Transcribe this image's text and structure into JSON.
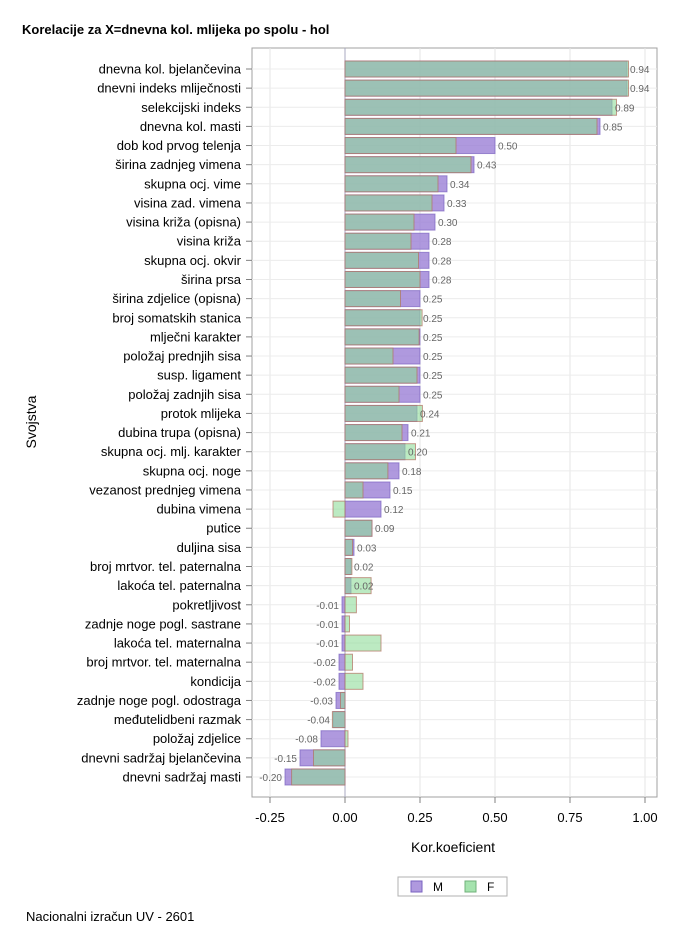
{
  "chart_data": {
    "type": "bar",
    "orientation": "horizontal",
    "title": "Korelacije za X=dnevna kol. mlijeka po spolu - hol",
    "xlabel": "Kor.koeficient",
    "ylabel": "Svojstva",
    "xlim": [
      -0.3,
      1.02
    ],
    "xticks": [
      "-0.25",
      "0.00",
      "0.25",
      "0.50",
      "0.75",
      "1.00"
    ],
    "xtick_values": [
      -0.25,
      0,
      0.25,
      0.5,
      0.75,
      1.0
    ],
    "grid": true,
    "legend_position": "bottom",
    "footnote": "Nacionalni izračun UV - 2601",
    "categories": [
      "dnevna kol. bjelančevina",
      "dnevni indeks mliječnosti",
      "selekcijski indeks",
      "dnevna kol. masti",
      "dob kod prvog telenja",
      "širina zadnjeg vimena",
      "skupna ocj. vime",
      "visina zad. vimena",
      "visina križa (opisna)",
      "visina križa",
      "skupna ocj. okvir",
      "širina prsa",
      "širina zdjelice (opisna)",
      "broj somatskih stanica",
      "mlječni karakter",
      "položaj prednjih sisa",
      "susp. ligament",
      "položaj zadnjih sisa",
      "protok mlijeka",
      "dubina trupa (opisna)",
      "skupna ocj. mlj. karakter",
      "skupna ocj. noge",
      "vezanost prednjeg vimena",
      "dubina vimena",
      "putice",
      "duljina sisa",
      "broj mrtvor. tel. paternalna",
      "lakoća tel. paternalna",
      "pokretljivost",
      "zadnje noge pogl. sastrane",
      "lakoća tel. maternalna",
      "broj mrtvor. tel. maternalna",
      "kondicija",
      "zadnje noge pogl. odostraga",
      "međutelidbeni razmak",
      "položaj zdjelice",
      "dnevni sadržaj bjelančevina",
      "dnevni sadržaj masti"
    ],
    "series": [
      {
        "name": "M",
        "color": "#9b7fd6",
        "values": [
          0.94,
          0.94,
          0.89,
          0.85,
          0.5,
          0.43,
          0.34,
          0.33,
          0.3,
          0.28,
          0.28,
          0.28,
          0.25,
          0.25,
          0.25,
          0.25,
          0.25,
          0.25,
          0.24,
          0.21,
          0.2,
          0.18,
          0.15,
          0.12,
          0.09,
          0.03,
          0.02,
          0.02,
          -0.01,
          -0.01,
          -0.01,
          -0.02,
          -0.02,
          -0.03,
          -0.04,
          -0.08,
          -0.15,
          -0.2
        ]
      },
      {
        "name": "F",
        "color": "#8fdc9a",
        "values": [
          0.945,
          0.945,
          0.905,
          0.84,
          0.37,
          0.42,
          0.31,
          0.29,
          0.23,
          0.22,
          0.245,
          0.25,
          0.185,
          0.257,
          0.247,
          0.16,
          0.24,
          0.18,
          0.258,
          0.19,
          0.235,
          0.143,
          0.06,
          -0.04,
          0.09,
          0.025,
          0.023,
          0.087,
          0.038,
          0.015,
          0.12,
          0.025,
          0.06,
          -0.015,
          -0.042,
          0.01,
          -0.105,
          -0.178
        ]
      }
    ],
    "data_labels": [
      "0.94",
      "0.94",
      "0.89",
      "0.85",
      "0.50",
      "0.43",
      "0.34",
      "0.33",
      "0.30",
      "0.28",
      "0.28",
      "0.28",
      "0.25",
      "0.25",
      "0.25",
      "0.25",
      "0.25",
      "0.25",
      "0.24",
      "0.21",
      "0.20",
      "0.18",
      "0.15",
      "0.12",
      "0.09",
      "0.03",
      "0.02",
      "0.02",
      "-0.01",
      "-0.01",
      "-0.01",
      "-0.02",
      "-0.02",
      "-0.03",
      "-0.04",
      "-0.08",
      "-0.15",
      "-0.20"
    ]
  }
}
